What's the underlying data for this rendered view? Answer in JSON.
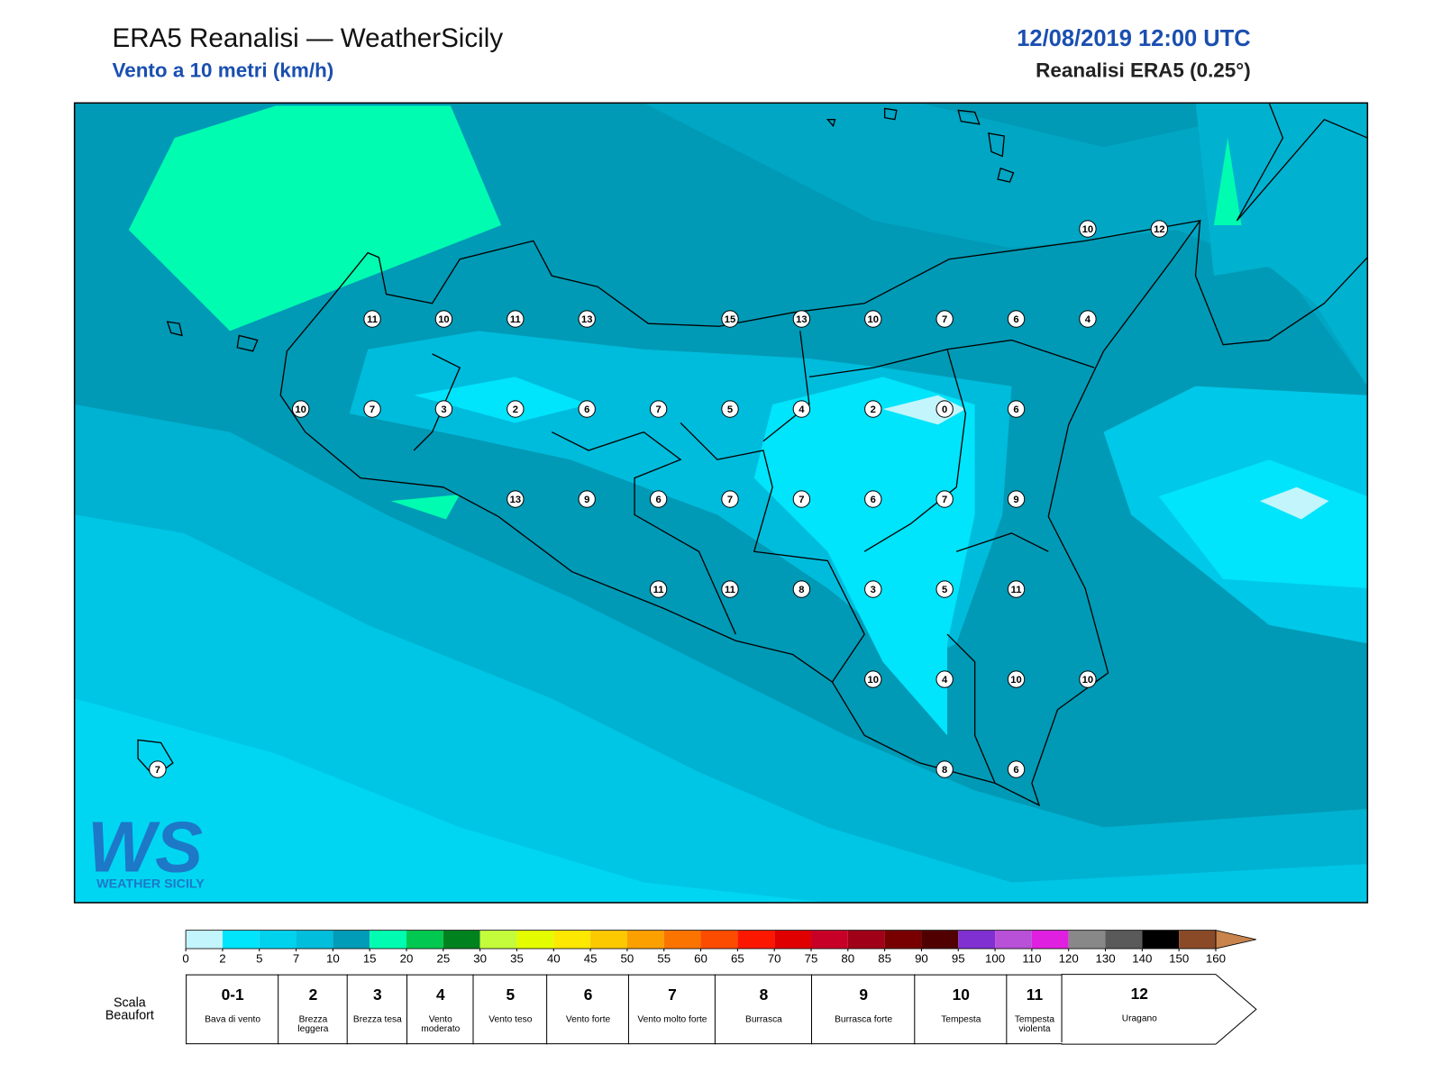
{
  "header": {
    "title": "ERA5 Reanalisi — WeatherSicily",
    "subtitle": "Vento a 10 metri (km/h)",
    "date": "12/08/2019 12:00 UTC",
    "source": "Reanalisi ERA5 (0.25°)"
  },
  "stations": [
    10,
    12,
    11,
    10,
    11,
    13,
    15,
    13,
    10,
    7,
    6,
    4,
    10,
    7,
    3,
    2,
    6,
    7,
    5,
    4,
    2,
    0,
    6,
    13,
    9,
    6,
    7,
    7,
    6,
    7,
    9,
    11,
    11,
    8,
    3,
    5,
    11,
    10,
    4,
    10,
    10,
    7,
    8,
    6
  ],
  "logo": {
    "mark": "WS",
    "text": "WEATHER SICILY"
  },
  "colorbar": {
    "ticks": [
      0,
      2,
      5,
      7,
      10,
      15,
      20,
      25,
      30,
      35,
      40,
      45,
      50,
      55,
      60,
      65,
      70,
      75,
      80,
      85,
      90,
      95,
      100,
      110,
      120,
      130,
      140,
      150,
      160
    ],
    "colors": [
      "#c2f5fc",
      "#00e4fc",
      "#00d2ee",
      "#00bedc",
      "#009cb8",
      "#00fcb0",
      "#00c850",
      "#00821e",
      "#c4fc3c",
      "#e4fc00",
      "#fce800",
      "#fcc800",
      "#fca000",
      "#fc7400",
      "#fc4c00",
      "#fc1800",
      "#e00000",
      "#c80028",
      "#a00018",
      "#780000",
      "#500000",
      "#8030d0",
      "#b850d8",
      "#e020e0",
      "#888888",
      "#5a5a5a",
      "#000000",
      "#8a4a28",
      "#c8844c"
    ],
    "extend_color": "#c8844c"
  },
  "beaufort": {
    "label": "Scala Beaufort",
    "levels": [
      {
        "force": "0-1",
        "name": "Bava di vento"
      },
      {
        "force": "2",
        "name": "Brezza leggera"
      },
      {
        "force": "3",
        "name": "Brezza tesa"
      },
      {
        "force": "4",
        "name": "Vento moderato"
      },
      {
        "force": "5",
        "name": "Vento teso"
      },
      {
        "force": "6",
        "name": "Vento forte"
      },
      {
        "force": "7",
        "name": "Vento molto forte"
      },
      {
        "force": "8",
        "name": "Burrasca"
      },
      {
        "force": "9",
        "name": "Burrasca forte"
      },
      {
        "force": "10",
        "name": "Tempesta"
      },
      {
        "force": "11",
        "name": "Tempesta violenta"
      },
      {
        "force": "12",
        "name": "Uragano"
      }
    ]
  }
}
